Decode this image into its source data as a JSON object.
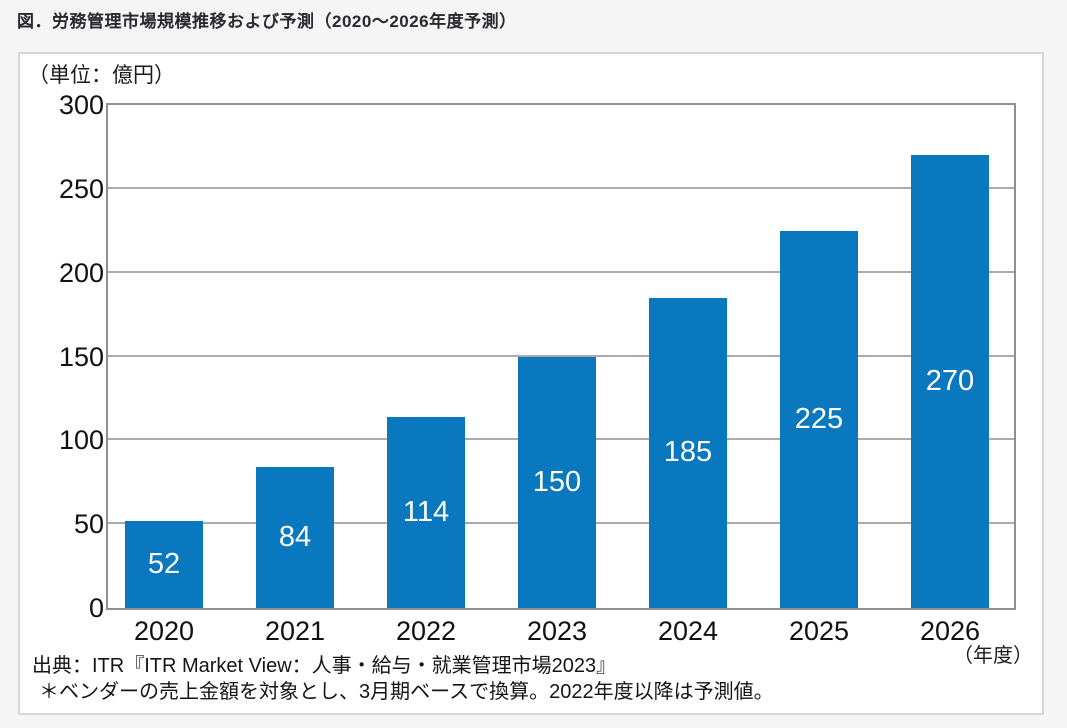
{
  "title": "図．労務管理市場規模推移および予測（2020～2026年度予測）",
  "chart_data": {
    "type": "bar",
    "title": "労務管理市場規模推移および予測（2020～2026年度予測）",
    "unit_label": "（単位：億円）",
    "categories": [
      "2020",
      "2021",
      "2022",
      "2023",
      "2024",
      "2025",
      "2026"
    ],
    "values": [
      52,
      84,
      114,
      150,
      185,
      225,
      270
    ],
    "xunit": "（年度）",
    "ylim": [
      0,
      300
    ],
    "yticks": [
      0,
      50,
      100,
      150,
      200,
      250,
      300
    ],
    "grid": "horizontal",
    "legend": "none",
    "bar_color": "#0a78be",
    "value_label_color": "#ffffff"
  },
  "footer": {
    "source": "出典：ITR『ITR Market View：人事・給与・就業管理市場2023』",
    "note": "＊ベンダーの売上金額を対象とし、3月期ベースで換算。2022年度以降は予測値。"
  }
}
